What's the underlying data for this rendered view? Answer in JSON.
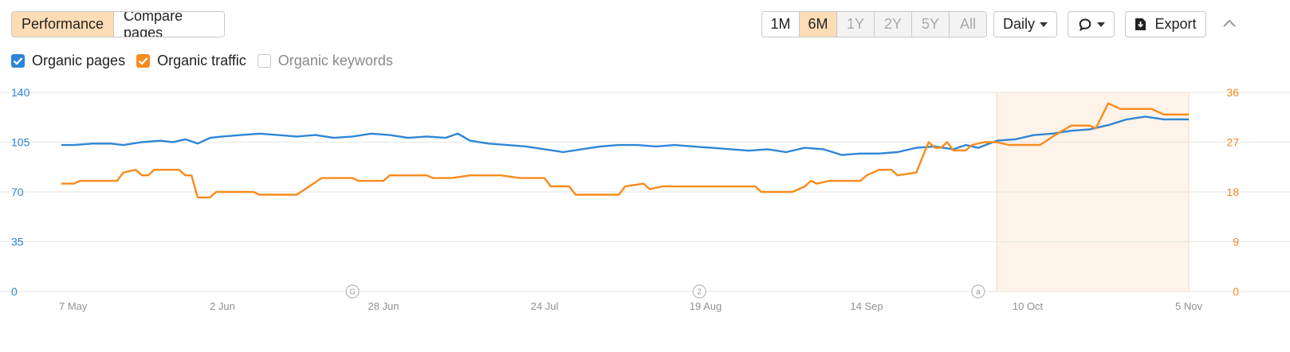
{
  "toolbar": {
    "view_tabs": [
      {
        "label": "Performance",
        "active": true
      },
      {
        "label": "Compare pages",
        "active": false
      }
    ],
    "ranges": [
      {
        "label": "1M",
        "state": "normal"
      },
      {
        "label": "6M",
        "state": "active"
      },
      {
        "label": "1Y",
        "state": "disabled"
      },
      {
        "label": "2Y",
        "state": "disabled"
      },
      {
        "label": "5Y",
        "state": "disabled"
      },
      {
        "label": "All",
        "state": "disabled"
      }
    ],
    "granularity": "Daily",
    "export_label": "Export"
  },
  "legend": [
    {
      "label": "Organic pages",
      "checked": true,
      "color": "#2e86d6"
    },
    {
      "label": "Organic traffic",
      "checked": true,
      "color": "#f98b1c"
    },
    {
      "label": "Organic keywords",
      "checked": false,
      "color": "#c6c6c6"
    }
  ],
  "colors": {
    "pages": "#2e86d6",
    "traffic": "#f98b1c",
    "highlight": "#fdf3e8",
    "grid": "#e6e6e6"
  },
  "chart_data": {
    "type": "line",
    "x_ticks": [
      "7 May",
      "2 Jun",
      "28 Jun",
      "24 Jul",
      "19 Aug",
      "14 Sep",
      "10 Oct",
      "5 Nov"
    ],
    "y_left": {
      "ticks": [
        0,
        35,
        70,
        105,
        140
      ],
      "range": [
        0,
        140
      ],
      "color": "#2e86d6"
    },
    "y_right": {
      "ticks": [
        0,
        9,
        18,
        27,
        36
      ],
      "range": [
        0,
        36
      ],
      "color": "#f28a1c"
    },
    "grid": true,
    "markers": [
      {
        "label": "G",
        "date": "2023-06-23"
      },
      {
        "label": "2",
        "date": "2023-08-18"
      },
      {
        "label": "a",
        "date": "2023-10-02"
      }
    ],
    "highlight_range": [
      "2023-10-05",
      "2023-11-05"
    ],
    "series": [
      {
        "name": "Organic pages",
        "axis": "left",
        "color": "#2e86d6",
        "points": [
          [
            "2023-05-07",
            103
          ],
          [
            "2023-05-09",
            103
          ],
          [
            "2023-05-12",
            104
          ],
          [
            "2023-05-15",
            104
          ],
          [
            "2023-05-17",
            103
          ],
          [
            "2023-05-20",
            105
          ],
          [
            "2023-05-23",
            106
          ],
          [
            "2023-05-25",
            105
          ],
          [
            "2023-05-27",
            107
          ],
          [
            "2023-05-29",
            104
          ],
          [
            "2023-05-31",
            108
          ],
          [
            "2023-06-02",
            109
          ],
          [
            "2023-06-05",
            110
          ],
          [
            "2023-06-08",
            111
          ],
          [
            "2023-06-11",
            110
          ],
          [
            "2023-06-14",
            109
          ],
          [
            "2023-06-17",
            110
          ],
          [
            "2023-06-20",
            108
          ],
          [
            "2023-06-23",
            109
          ],
          [
            "2023-06-26",
            111
          ],
          [
            "2023-06-29",
            110
          ],
          [
            "2023-07-02",
            108
          ],
          [
            "2023-07-05",
            109
          ],
          [
            "2023-07-08",
            108
          ],
          [
            "2023-07-10",
            111
          ],
          [
            "2023-07-12",
            106
          ],
          [
            "2023-07-15",
            104
          ],
          [
            "2023-07-18",
            103
          ],
          [
            "2023-07-21",
            102
          ],
          [
            "2023-07-24",
            100
          ],
          [
            "2023-07-27",
            98
          ],
          [
            "2023-07-30",
            100
          ],
          [
            "2023-08-02",
            102
          ],
          [
            "2023-08-05",
            103
          ],
          [
            "2023-08-08",
            103
          ],
          [
            "2023-08-11",
            102
          ],
          [
            "2023-08-14",
            103
          ],
          [
            "2023-08-17",
            102
          ],
          [
            "2023-08-20",
            101
          ],
          [
            "2023-08-23",
            100
          ],
          [
            "2023-08-26",
            99
          ],
          [
            "2023-08-29",
            100
          ],
          [
            "2023-09-01",
            98
          ],
          [
            "2023-09-04",
            101
          ],
          [
            "2023-09-07",
            100
          ],
          [
            "2023-09-10",
            96
          ],
          [
            "2023-09-13",
            97
          ],
          [
            "2023-09-16",
            97
          ],
          [
            "2023-09-19",
            98
          ],
          [
            "2023-09-22",
            101
          ],
          [
            "2023-09-25",
            102
          ],
          [
            "2023-09-28",
            100
          ],
          [
            "2023-09-30",
            103
          ],
          [
            "2023-10-02",
            101
          ],
          [
            "2023-10-05",
            106
          ],
          [
            "2023-10-08",
            107
          ],
          [
            "2023-10-11",
            110
          ],
          [
            "2023-10-14",
            111
          ],
          [
            "2023-10-17",
            113
          ],
          [
            "2023-10-20",
            114
          ],
          [
            "2023-10-23",
            117
          ],
          [
            "2023-10-26",
            121
          ],
          [
            "2023-10-29",
            123
          ],
          [
            "2023-11-01",
            121
          ],
          [
            "2023-11-05",
            121
          ]
        ]
      },
      {
        "name": "Organic traffic",
        "axis": "right",
        "color": "#f98b1c",
        "points": [
          [
            "2023-05-07",
            19.5
          ],
          [
            "2023-05-09",
            19.5
          ],
          [
            "2023-05-10",
            20
          ],
          [
            "2023-05-16",
            20
          ],
          [
            "2023-05-17",
            21.5
          ],
          [
            "2023-05-19",
            22
          ],
          [
            "2023-05-20",
            21
          ],
          [
            "2023-05-21",
            21
          ],
          [
            "2023-05-22",
            22
          ],
          [
            "2023-05-26",
            22
          ],
          [
            "2023-05-27",
            21
          ],
          [
            "2023-05-28",
            21
          ],
          [
            "2023-05-29",
            17
          ],
          [
            "2023-05-31",
            17
          ],
          [
            "2023-06-01",
            18
          ],
          [
            "2023-06-07",
            18
          ],
          [
            "2023-06-08",
            17.5
          ],
          [
            "2023-06-14",
            17.5
          ],
          [
            "2023-06-16",
            19
          ],
          [
            "2023-06-18",
            20.5
          ],
          [
            "2023-06-23",
            20.5
          ],
          [
            "2023-06-24",
            20
          ],
          [
            "2023-06-28",
            20
          ],
          [
            "2023-06-29",
            21
          ],
          [
            "2023-07-05",
            21
          ],
          [
            "2023-07-06",
            20.5
          ],
          [
            "2023-07-09",
            20.5
          ],
          [
            "2023-07-12",
            21
          ],
          [
            "2023-07-17",
            21
          ],
          [
            "2023-07-20",
            20.5
          ],
          [
            "2023-07-24",
            20.5
          ],
          [
            "2023-07-25",
            19
          ],
          [
            "2023-07-28",
            19
          ],
          [
            "2023-07-29",
            17.5
          ],
          [
            "2023-08-05",
            17.5
          ],
          [
            "2023-08-06",
            19
          ],
          [
            "2023-08-09",
            19.5
          ],
          [
            "2023-08-10",
            18.5
          ],
          [
            "2023-08-12",
            19
          ],
          [
            "2023-08-18",
            19
          ],
          [
            "2023-08-20",
            19
          ],
          [
            "2023-08-27",
            19
          ],
          [
            "2023-08-28",
            18
          ],
          [
            "2023-09-02",
            18
          ],
          [
            "2023-09-04",
            19
          ],
          [
            "2023-09-05",
            20
          ],
          [
            "2023-09-06",
            19.5
          ],
          [
            "2023-09-08",
            20
          ],
          [
            "2023-09-13",
            20
          ],
          [
            "2023-09-14",
            21
          ],
          [
            "2023-09-16",
            22
          ],
          [
            "2023-09-18",
            22
          ],
          [
            "2023-09-19",
            21
          ],
          [
            "2023-09-22",
            21.5
          ],
          [
            "2023-09-24",
            27
          ],
          [
            "2023-09-25",
            26
          ],
          [
            "2023-09-26",
            26
          ],
          [
            "2023-09-27",
            27
          ],
          [
            "2023-09-28",
            25.5
          ],
          [
            "2023-09-30",
            25.5
          ],
          [
            "2023-10-01",
            26.5
          ],
          [
            "2023-10-03",
            27
          ],
          [
            "2023-10-05",
            27
          ],
          [
            "2023-10-07",
            26.5
          ],
          [
            "2023-10-12",
            26.5
          ],
          [
            "2023-10-14",
            28
          ],
          [
            "2023-10-17",
            30
          ],
          [
            "2023-10-20",
            30
          ],
          [
            "2023-10-21",
            29.5
          ],
          [
            "2023-10-23",
            34
          ],
          [
            "2023-10-25",
            33
          ],
          [
            "2023-10-30",
            33
          ],
          [
            "2023-11-01",
            32
          ],
          [
            "2023-11-05",
            32
          ]
        ]
      }
    ]
  }
}
